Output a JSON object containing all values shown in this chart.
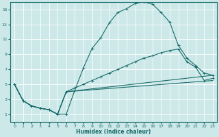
{
  "xlabel": "Humidex (Indice chaleur)",
  "bg_color": "#cce8e8",
  "grid_color": "#ffffff",
  "line_color": "#1a6b6b",
  "xlim": [
    -0.5,
    23.5
  ],
  "ylim": [
    0,
    16
  ],
  "xticks": [
    0,
    1,
    2,
    3,
    4,
    5,
    6,
    7,
    8,
    9,
    10,
    11,
    12,
    13,
    14,
    15,
    16,
    17,
    18,
    19,
    20,
    21,
    22,
    23
  ],
  "yticks": [
    1,
    3,
    5,
    7,
    9,
    11,
    13,
    15
  ],
  "curve1_x": [
    0,
    1,
    2,
    3,
    4,
    5,
    6,
    7,
    8,
    9,
    10,
    11,
    12,
    13,
    14,
    15,
    16,
    17,
    18,
    19,
    20,
    21,
    22,
    23
  ],
  "curve1_y": [
    5.0,
    2.8,
    2.1,
    1.8,
    1.6,
    1.0,
    1.0,
    4.2,
    7.2,
    9.8,
    11.2,
    13.2,
    14.6,
    15.1,
    15.8,
    16.0,
    15.7,
    14.6,
    13.3,
    10.2,
    8.5,
    7.5,
    6.5,
    6.2
  ],
  "curve2_x": [
    0,
    1,
    2,
    3,
    4,
    5,
    6,
    7,
    8,
    9,
    10,
    11,
    12,
    13,
    14,
    15,
    16,
    17,
    18,
    19,
    20,
    21,
    22,
    23
  ],
  "curve2_y": [
    5.0,
    2.8,
    2.1,
    1.8,
    1.6,
    1.0,
    4.0,
    4.5,
    5.0,
    5.5,
    6.0,
    6.5,
    7.0,
    7.5,
    8.0,
    8.5,
    8.8,
    9.2,
    9.5,
    9.7,
    8.0,
    7.3,
    5.5,
    5.8
  ],
  "curve3_x": [
    0,
    1,
    2,
    3,
    4,
    5,
    6,
    23
  ],
  "curve3_y": [
    5.0,
    2.8,
    2.1,
    1.8,
    1.6,
    1.0,
    4.0,
    6.2
  ],
  "curve4_x": [
    0,
    1,
    2,
    3,
    4,
    5,
    6,
    23
  ],
  "curve4_y": [
    5.0,
    2.8,
    2.1,
    1.8,
    1.6,
    1.0,
    4.0,
    5.5
  ]
}
